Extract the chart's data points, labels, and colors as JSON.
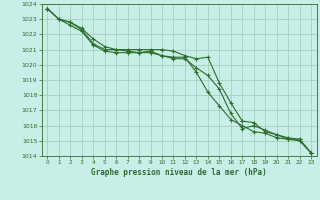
{
  "xlabel": "Graphe pression niveau de la mer (hPa)",
  "ylim": [
    1014,
    1024
  ],
  "xlim": [
    -0.5,
    23.5
  ],
  "yticks": [
    1014,
    1015,
    1016,
    1017,
    1018,
    1019,
    1020,
    1021,
    1022,
    1023,
    1024
  ],
  "xticks": [
    0,
    1,
    2,
    3,
    4,
    5,
    6,
    7,
    8,
    9,
    10,
    11,
    12,
    13,
    14,
    15,
    16,
    17,
    18,
    19,
    20,
    21,
    22,
    23
  ],
  "bg_color": "#c8eee8",
  "grid_color": "#a0c8b8",
  "line_color": "#2d6e2d",
  "line1": [
    1023.7,
    1023.0,
    1022.8,
    1022.4,
    1021.7,
    1021.2,
    1021.0,
    1020.9,
    1020.8,
    1020.9,
    1020.6,
    1020.5,
    1020.5,
    1019.5,
    1018.2,
    1017.3,
    1016.4,
    1016.0,
    1015.6,
    1015.5,
    1015.2,
    1015.1,
    1015.1,
    1014.2
  ],
  "line2": [
    1023.7,
    1023.0,
    1022.8,
    1022.3,
    1021.4,
    1021.0,
    1021.0,
    1021.0,
    1021.0,
    1021.0,
    1021.0,
    1020.9,
    1020.6,
    1020.4,
    1020.5,
    1018.8,
    1017.5,
    1016.3,
    1016.2,
    1015.6,
    1015.4,
    1015.1,
    1015.0,
    1014.2
  ],
  "line3": [
    1023.7,
    1023.0,
    1022.6,
    1022.2,
    1021.3,
    1020.9,
    1020.8,
    1020.8,
    1020.8,
    1020.8,
    1020.6,
    1020.4,
    1020.4,
    1019.8,
    1019.3,
    1018.4,
    1016.8,
    1015.8,
    1016.0,
    1015.7,
    1015.4,
    1015.2,
    1015.1,
    1014.2
  ]
}
